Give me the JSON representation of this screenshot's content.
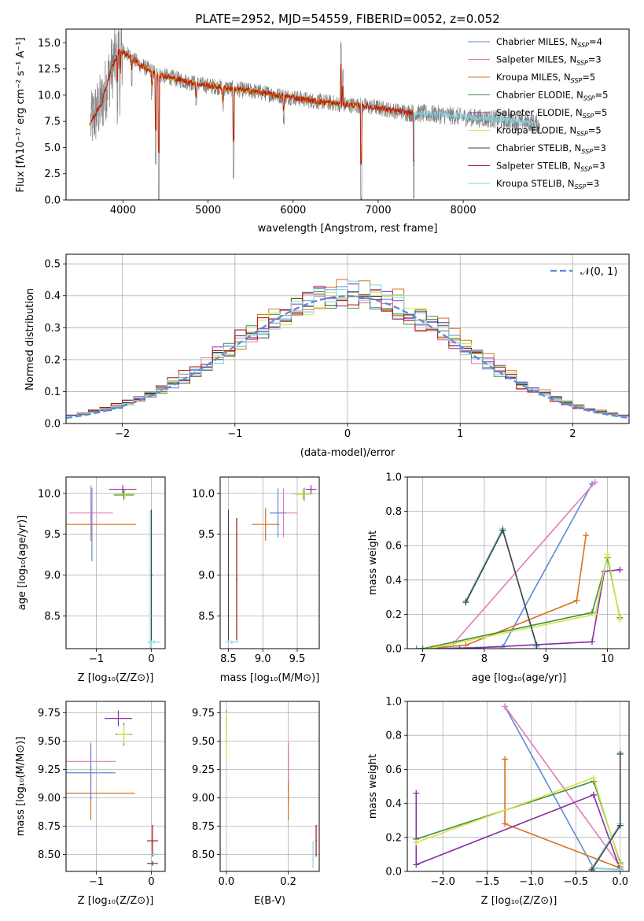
{
  "chart_data": [
    {
      "id": "spectrum",
      "type": "line",
      "title": "PLATE=2952, MJD=54559, FIBERID=0052, z=0.052",
      "xlabel": "wavelength [Angstrom, rest frame]",
      "ylabel": "Flux [fλ10⁻¹⁷ erg cm⁻² s⁻¹ A⁻¹]",
      "xlim": [
        3330,
        9950
      ],
      "ylim": [
        0,
        16.3
      ],
      "xticks": [
        4000,
        5000,
        6000,
        7000,
        8000
      ],
      "yticks": [
        0.0,
        2.5,
        5.0,
        7.5,
        10.0,
        12.5,
        15.0
      ],
      "grid": false,
      "legend_position": "top-right",
      "legend": [
        {
          "label": "Chabrier MILES, N",
          "sub": "SSP",
          "post": "=4",
          "color": "#5b8bd9"
        },
        {
          "label": "Salpeter MILES, N",
          "sub": "SSP",
          "post": "=3",
          "color": "#e27cb8"
        },
        {
          "label": "Kroupa MILES, N",
          "sub": "SSP",
          "post": "=5",
          "color": "#d9731c"
        },
        {
          "label": "Chabrier ELODIE, N",
          "sub": "SSP",
          "post": "=5",
          "color": "#3f8f3f"
        },
        {
          "label": "Salpeter ELODIE, N",
          "sub": "SSP",
          "post": "=5",
          "color": "#8a2fa5"
        },
        {
          "label": "Kroupa ELODIE, N",
          "sub": "SSP",
          "post": "=5",
          "color": "#d6e54a"
        },
        {
          "label": "Chabrier STELIB, N",
          "sub": "SSP",
          "post": "=3",
          "color": "#444444"
        },
        {
          "label": "Salpeter STELIB, N",
          "sub": "SSP",
          "post": "=3",
          "color": "#b01010"
        },
        {
          "label": "Kroupa STELIB, N",
          "sub": "SSP",
          "post": "=3",
          "color": "#7fd6e6"
        }
      ],
      "data_color": "#808080",
      "continuum": [
        [
          3630,
          7.6
        ],
        [
          3750,
          9.2
        ],
        [
          3850,
          12.2
        ],
        [
          3950,
          14.2
        ],
        [
          4050,
          13.9
        ],
        [
          4200,
          12.9
        ],
        [
          4400,
          12.0
        ],
        [
          4600,
          11.6
        ],
        [
          4800,
          11.2
        ],
        [
          5000,
          10.9
        ],
        [
          5200,
          10.7
        ],
        [
          5400,
          10.5
        ],
        [
          5600,
          10.3
        ],
        [
          5800,
          10.0
        ],
        [
          6000,
          9.8
        ],
        [
          6200,
          9.5
        ],
        [
          6400,
          9.3
        ],
        [
          6600,
          9.1
        ],
        [
          6800,
          9.0
        ],
        [
          7000,
          8.8
        ],
        [
          7200,
          8.5
        ],
        [
          7400,
          8.3
        ],
        [
          7600,
          8.2
        ],
        [
          7800,
          8.1
        ],
        [
          8000,
          7.9
        ],
        [
          8200,
          7.8
        ],
        [
          8400,
          7.7
        ],
        [
          8600,
          7.5
        ],
        [
          8850,
          7.3
        ]
      ],
      "data_range": [
        3620,
        8900
      ],
      "model_segments": [
        {
          "color": "#7fd6e6",
          "x0": 3650,
          "x1": 8850
        },
        {
          "color": "#d6e54a",
          "x0": 3920,
          "x1": 6800
        },
        {
          "color": "#d9731c",
          "x0": 3600,
          "x1": 7420
        },
        {
          "color": "#b01010",
          "x0": 3620,
          "x1": 7420
        }
      ],
      "dips": [
        [
          3933,
          -4
        ],
        [
          3968,
          -3
        ],
        [
          4102,
          -2
        ],
        [
          4340,
          -2
        ],
        [
          4384,
          -9
        ],
        [
          4420,
          -12
        ],
        [
          4861,
          -2
        ],
        [
          5175,
          -2
        ],
        [
          5300,
          -8
        ],
        [
          5890,
          -2
        ],
        [
          6563,
          -1
        ],
        [
          6800,
          -9
        ],
        [
          7420,
          -8
        ]
      ],
      "spikes": [
        [
          6563,
          7
        ],
        [
          6583,
          3
        ]
      ]
    },
    {
      "id": "residuals",
      "type": "step",
      "xlabel": "(data-model)/error",
      "ylabel": "Normed distribution",
      "xlim": [
        -2.5,
        2.5
      ],
      "ylim": [
        0,
        0.53
      ],
      "xticks": [
        -2,
        -1,
        0,
        1,
        2
      ],
      "yticks": [
        0.0,
        0.1,
        0.2,
        0.3,
        0.4,
        0.5
      ],
      "grid": true,
      "legend_position": "top-right",
      "legend": [
        {
          "label": "𝒩(0, 1)",
          "color": "#5b8bd9",
          "style": "dashed"
        }
      ],
      "bin_width": 0.1,
      "series": [
        {
          "name": "Chabrier MILES",
          "color": "#5b8bd9",
          "offset": 0.01,
          "amp": 1.0
        },
        {
          "name": "Salpeter MILES",
          "color": "#e27cb8",
          "offset": -0.02,
          "amp": 0.97
        },
        {
          "name": "Kroupa MILES",
          "color": "#d9731c",
          "offset": 0.03,
          "amp": 1.03
        },
        {
          "name": "Chabrier ELODIE",
          "color": "#3f8f3f",
          "offset": 0.0,
          "amp": 0.99
        },
        {
          "name": "Salpeter ELODIE",
          "color": "#8a2fa5",
          "offset": -0.01,
          "amp": 1.02
        },
        {
          "name": "Kroupa ELODIE",
          "color": "#d6e54a",
          "offset": 0.02,
          "amp": 1.0
        },
        {
          "name": "Chabrier STELIB",
          "color": "#444444",
          "offset": 0.01,
          "amp": 0.98
        },
        {
          "name": "Salpeter STELIB",
          "color": "#b01010",
          "offset": -0.03,
          "amp": 1.01
        },
        {
          "name": "Kroupa STELIB",
          "color": "#7fd6e6",
          "offset": 0.0,
          "amp": 1.0
        }
      ]
    },
    {
      "id": "age_vs_z",
      "type": "errorbar",
      "xlabel": "Z [log₁₀(Z/Z⊙)]",
      "ylabel": "age  [log₁₀(age/yr)]",
      "xlim": [
        -1.55,
        0.25
      ],
      "ylim": [
        8.1,
        10.2
      ],
      "xticks": [
        -1,
        0
      ],
      "yticks": [
        8.5,
        9.0,
        9.5,
        10.0
      ],
      "grid": true,
      "points": [
        {
          "x": -0.52,
          "y": 10.05,
          "xerr": 0.25,
          "yerr": 0.05,
          "color": "#8a2fa5"
        },
        {
          "x": -0.5,
          "y": 9.98,
          "xerr": 0.18,
          "yerr": 0.06,
          "color": "#3f8f3f"
        },
        {
          "x": -0.48,
          "y": 9.99,
          "xerr": 0.2,
          "yerr": 0.05,
          "color": "#d6e54a"
        },
        {
          "x": -1.1,
          "y": 9.76,
          "xerr": 0.4,
          "yerr": 0.34,
          "color": "#e27cb8"
        },
        {
          "x": -1.08,
          "y": 9.62,
          "xerr": 0.8,
          "yerr": 0.2,
          "color": "#d9731c"
        },
        {
          "x": -1.08,
          "y": 9.62,
          "xerr": 0.02,
          "yerr": 0.45,
          "color": "#5b8bd9"
        },
        {
          "x": 0.0,
          "y": 9.0,
          "xerr": 0.02,
          "yerr": 0.8,
          "color": "#444444"
        },
        {
          "x": 0.05,
          "y": 8.18,
          "xerr": 0.12,
          "yerr": 0.02,
          "color": "#7fd6e6"
        },
        {
          "x": -0.02,
          "y": 8.5,
          "xerr": 0.02,
          "yerr": 1.3,
          "color": "#7fd6e6"
        }
      ]
    },
    {
      "id": "age_vs_mass",
      "type": "errorbar",
      "xlabel": "mass [log₁₀(M/M⊙)]",
      "ylabel": "",
      "xlim": [
        8.38,
        9.82
      ],
      "ylim": [
        8.1,
        10.2
      ],
      "xticks": [
        8.5,
        9.0,
        9.5
      ],
      "yticks": [
        8.5,
        9.0,
        9.5,
        10.0
      ],
      "grid": true,
      "points": [
        {
          "x": 9.7,
          "y": 10.05,
          "xerr": 0.08,
          "yerr": 0.05,
          "color": "#8a2fa5"
        },
        {
          "x": 9.6,
          "y": 9.99,
          "xerr": 0.12,
          "yerr": 0.08,
          "color": "#3f8f3f"
        },
        {
          "x": 9.58,
          "y": 9.99,
          "xerr": 0.15,
          "yerr": 0.06,
          "color": "#d6e54a"
        },
        {
          "x": 9.3,
          "y": 9.76,
          "xerr": 0.2,
          "yerr": 0.3,
          "color": "#e27cb8"
        },
        {
          "x": 9.04,
          "y": 9.62,
          "xerr": 0.2,
          "yerr": 0.2,
          "color": "#d9731c"
        },
        {
          "x": 9.22,
          "y": 9.76,
          "xerr": 0.12,
          "yerr": 0.3,
          "color": "#5b8bd9"
        },
        {
          "x": 8.5,
          "y": 9.0,
          "xerr": 0.01,
          "yerr": 0.8,
          "color": "#444444"
        },
        {
          "x": 8.62,
          "y": 8.95,
          "xerr": 0.01,
          "yerr": 0.75,
          "color": "#b01010"
        },
        {
          "x": 8.55,
          "y": 8.18,
          "xerr": 0.1,
          "yerr": 0.02,
          "color": "#7fd6e6"
        }
      ]
    },
    {
      "id": "weight_vs_age",
      "type": "line",
      "xlabel": "age  [log₁₀(age/yr)]",
      "ylabel": "mass weight",
      "xlim": [
        6.75,
        10.35
      ],
      "ylim": [
        0,
        1.0
      ],
      "xticks": [
        7,
        8,
        9,
        10
      ],
      "yticks": [
        0.0,
        0.2,
        0.4,
        0.6,
        0.8,
        1.0
      ],
      "grid": true,
      "series": [
        {
          "name": "Chabrier MILES",
          "color": "#5b8bd9",
          "points": [
            [
              6.9,
              0.0
            ],
            [
              8.3,
              0.01
            ],
            [
              9.75,
              0.96
            ]
          ]
        },
        {
          "name": "Salpeter MILES",
          "color": "#e27cb8",
          "points": [
            [
              7.5,
              0.03
            ],
            [
              9.8,
              0.97
            ]
          ]
        },
        {
          "name": "Kroupa MILES",
          "color": "#d9731c",
          "points": [
            [
              7.0,
              0.0
            ],
            [
              7.7,
              0.02
            ],
            [
              9.5,
              0.28
            ],
            [
              9.65,
              0.66
            ]
          ]
        },
        {
          "name": "Chabrier ELODIE",
          "color": "#3f8f3f",
          "points": [
            [
              7.0,
              0.0
            ],
            [
              9.75,
              0.21
            ],
            [
              10.0,
              0.53
            ],
            [
              10.2,
              0.18
            ]
          ]
        },
        {
          "name": "Salpeter ELODIE",
          "color": "#8a2fa5",
          "points": [
            [
              7.6,
              0.0
            ],
            [
              9.75,
              0.04
            ],
            [
              9.95,
              0.45
            ],
            [
              10.2,
              0.46
            ]
          ]
        },
        {
          "name": "Kroupa ELODIE",
          "color": "#d6e54a",
          "points": [
            [
              7.1,
              0.0
            ],
            [
              9.8,
              0.2
            ],
            [
              10.0,
              0.55
            ],
            [
              10.2,
              0.17
            ]
          ]
        },
        {
          "name": "Kroupa STELIB",
          "color": "#7fd6e6",
          "points": [
            [
              7.7,
              0.28
            ],
            [
              8.3,
              0.7
            ],
            [
              8.85,
              0.01
            ]
          ]
        },
        {
          "name": "Chabrier STELIB",
          "color": "#444444",
          "points": [
            [
              7.7,
              0.27
            ],
            [
              8.3,
              0.69
            ],
            [
              8.85,
              0.02
            ]
          ]
        }
      ]
    },
    {
      "id": "mass_vs_z",
      "type": "errorbar",
      "xlabel": "Z [log₁₀(Z/Z⊙)]",
      "ylabel": "mass [log₁₀(M/M⊙)]",
      "xlim": [
        -1.55,
        0.25
      ],
      "ylim": [
        8.35,
        9.85
      ],
      "xticks": [
        -1,
        0
      ],
      "yticks": [
        8.5,
        8.75,
        9.0,
        9.25,
        9.5,
        9.75
      ],
      "grid": true,
      "points": [
        {
          "x": -0.6,
          "y": 9.7,
          "xerr": 0.25,
          "yerr": 0.07,
          "color": "#8a2fa5"
        },
        {
          "x": -0.5,
          "y": 9.56,
          "xerr": 0.15,
          "yerr": 0.1,
          "color": "#3f8f3f"
        },
        {
          "x": -0.5,
          "y": 9.56,
          "xerr": 0.12,
          "yerr": 0.08,
          "color": "#d6e54a"
        },
        {
          "x": -1.1,
          "y": 9.32,
          "xerr": 0.45,
          "yerr": 0.17,
          "color": "#e27cb8"
        },
        {
          "x": -1.1,
          "y": 9.04,
          "xerr": 0.8,
          "yerr": 0.24,
          "color": "#d9731c"
        },
        {
          "x": -1.1,
          "y": 9.22,
          "xerr": 0.45,
          "yerr": 0.25,
          "color": "#5b8bd9"
        },
        {
          "x": 0.02,
          "y": 8.62,
          "xerr": 0.1,
          "yerr": 0.14,
          "color": "#b01010"
        },
        {
          "x": 0.02,
          "y": 8.42,
          "xerr": 0.1,
          "yerr": 0.02,
          "color": "#444444"
        },
        {
          "x": 0.05,
          "y": 8.5,
          "xerr": 0.1,
          "yerr": 0.01,
          "color": "#7fd6e6"
        }
      ]
    },
    {
      "id": "mass_vs_ebv",
      "type": "errorbar",
      "xlabel": "E(B-V)",
      "ylabel": "",
      "xlim": [
        -0.02,
        0.3
      ],
      "ylim": [
        8.35,
        9.85
      ],
      "xticks": [
        0.0,
        0.2
      ],
      "yticks": [
        8.5,
        8.75,
        9.0,
        9.25,
        9.5,
        9.75
      ],
      "grid": true,
      "points": [
        {
          "x": 0.0,
          "y": 9.7,
          "xerr": 0.002,
          "yerr": 0.07,
          "color": "#8a2fa5"
        },
        {
          "x": 0.0,
          "y": 9.56,
          "xerr": 0.002,
          "yerr": 0.1,
          "color": "#3f8f3f"
        },
        {
          "x": 0.0,
          "y": 9.56,
          "xerr": 0.002,
          "yerr": 0.2,
          "color": "#d6e54a"
        },
        {
          "x": 0.2,
          "y": 9.22,
          "xerr": 0.002,
          "yerr": 0.27,
          "color": "#5b8bd9"
        },
        {
          "x": 0.2,
          "y": 9.1,
          "xerr": 0.002,
          "yerr": 0.3,
          "color": "#d9731c"
        },
        {
          "x": 0.2,
          "y": 9.32,
          "xerr": 0.002,
          "yerr": 0.17,
          "color": "#e27cb8"
        },
        {
          "x": 0.29,
          "y": 8.62,
          "xerr": 0.002,
          "yerr": 0.14,
          "color": "#b01010"
        },
        {
          "x": 0.28,
          "y": 8.5,
          "xerr": 0.002,
          "yerr": 0.12,
          "color": "#7fd6e6"
        }
      ]
    },
    {
      "id": "weight_vs_z",
      "type": "line",
      "xlabel": "Z [log₁₀(Z/Z⊙)]",
      "ylabel": "mass weight",
      "xlim": [
        -2.4,
        0.1
      ],
      "ylim": [
        0,
        1.0
      ],
      "xticks": [
        -2.0,
        -1.5,
        -1.0,
        -0.5,
        0.0
      ],
      "yticks": [
        0.0,
        0.2,
        0.4,
        0.6,
        0.8,
        1.0
      ],
      "grid": true,
      "series": [
        {
          "name": "Chabrier MILES",
          "color": "#5b8bd9",
          "points": [
            [
              -1.3,
              0.97
            ],
            [
              -0.3,
              0.02
            ],
            [
              0.0,
              0.01
            ]
          ]
        },
        {
          "name": "Salpeter MILES",
          "color": "#e27cb8",
          "points": [
            [
              -1.3,
              0.97
            ],
            [
              0.0,
              0.03
            ]
          ]
        },
        {
          "name": "Kroupa MILES",
          "color": "#d9731c",
          "points": [
            [
              -1.3,
              0.66
            ],
            [
              -1.3,
              0.28
            ],
            [
              0.0,
              0.02
            ]
          ]
        },
        {
          "name": "Chabrier ELODIE",
          "color": "#3f8f3f",
          "points": [
            [
              -2.3,
              0.19
            ],
            [
              -0.3,
              0.53
            ],
            [
              0.0,
              0.05
            ]
          ]
        },
        {
          "name": "Salpeter ELODIE",
          "color": "#8a2fa5",
          "points": [
            [
              -2.3,
              0.46
            ],
            [
              -2.3,
              0.04
            ],
            [
              -0.3,
              0.45
            ],
            [
              0.0,
              0.01
            ]
          ]
        },
        {
          "name": "Kroupa ELODIE",
          "color": "#d6e54a",
          "points": [
            [
              -2.3,
              0.17
            ],
            [
              -0.3,
              0.55
            ],
            [
              0.0,
              0.04
            ]
          ]
        },
        {
          "name": "Kroupa STELIB",
          "color": "#7fd6e6",
          "points": [
            [
              0.0,
              0.7
            ],
            [
              0.0,
              0.28
            ],
            [
              -0.32,
              0.02
            ],
            [
              0.0,
              0.01
            ]
          ]
        },
        {
          "name": "Chabrier STELIB",
          "color": "#444444",
          "points": [
            [
              0.0,
              0.69
            ],
            [
              0.0,
              0.27
            ],
            [
              -0.32,
              0.01
            ]
          ]
        }
      ]
    }
  ]
}
